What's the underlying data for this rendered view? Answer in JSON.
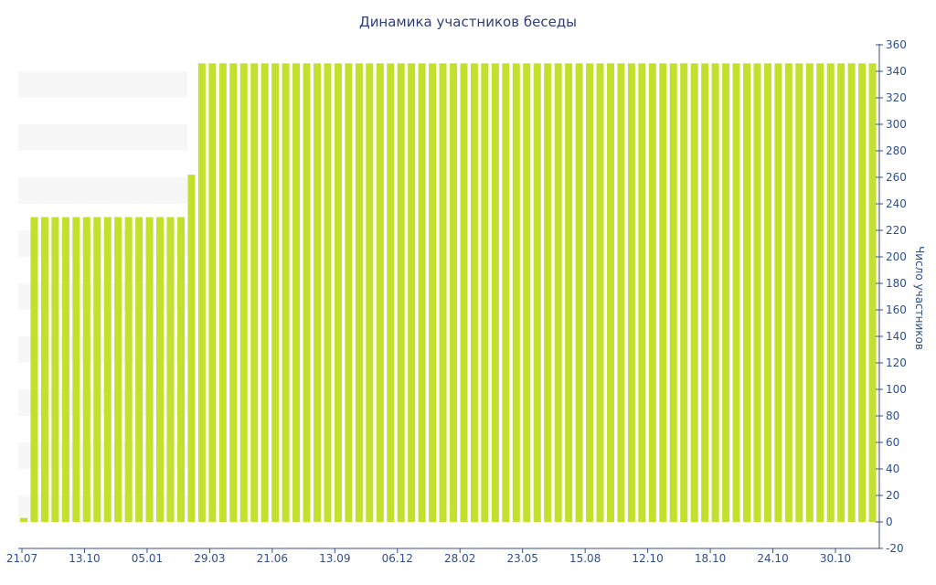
{
  "chart_data": {
    "type": "bar",
    "title": "Динамика участников беседы",
    "xlabel": "",
    "ylabel": "Число участников",
    "ylim": [
      -20,
      360
    ],
    "y_ticks": [
      -20,
      0,
      20,
      40,
      60,
      80,
      100,
      120,
      140,
      160,
      180,
      200,
      220,
      240,
      260,
      280,
      300,
      320,
      340,
      360
    ],
    "x_tick_labels": [
      "21.07",
      "13.10",
      "05.01",
      "29.03",
      "21.06",
      "13.09",
      "06.12",
      "28.02",
      "23.05",
      "15.08",
      "12.10",
      "18.10",
      "24.10",
      "30.10"
    ],
    "bar_color": "#c3e02d",
    "y_axis_position": "right",
    "grid": "alternating horizontal bands (left side)",
    "series": [
      {
        "values": [
          3,
          230,
          230,
          230,
          230,
          230,
          230,
          230,
          230,
          230,
          230,
          230,
          230,
          230,
          230,
          230,
          262,
          346,
          346,
          346,
          346,
          346,
          346,
          346,
          346,
          346,
          346,
          346,
          346,
          346,
          346,
          346,
          346,
          346,
          346,
          346,
          346,
          346,
          346,
          346,
          346,
          346,
          346,
          346,
          346,
          346,
          346,
          346,
          346,
          346,
          346,
          346,
          346,
          346,
          346,
          346,
          346,
          346,
          346,
          346,
          346,
          346,
          346,
          346,
          346,
          346,
          346,
          346,
          346,
          346,
          346,
          346,
          346,
          346,
          346,
          346,
          346,
          346,
          346,
          346,
          346,
          346
        ]
      }
    ]
  }
}
